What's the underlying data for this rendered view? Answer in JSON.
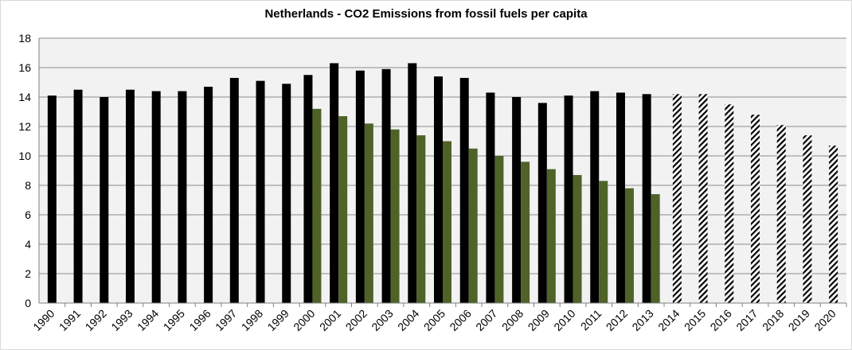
{
  "chart_data": {
    "type": "bar",
    "title": "Netherlands - CO2 Emissions from fossil fuels per capita",
    "xlabel": "",
    "ylabel": "",
    "ylim": [
      0,
      18
    ],
    "yticks": [
      0,
      2,
      4,
      6,
      8,
      10,
      12,
      14,
      16,
      18
    ],
    "grid": true,
    "legend": "none",
    "categories": [
      "1990",
      "1991",
      "1992",
      "1993",
      "1994",
      "1995",
      "1996",
      "1997",
      "1998",
      "1999",
      "2000",
      "2001",
      "2002",
      "2003",
      "2004",
      "2005",
      "2006",
      "2007",
      "2008",
      "2009",
      "2010",
      "2011",
      "2012",
      "2013",
      "2014",
      "2015",
      "2016",
      "2017",
      "2018",
      "2019",
      "2020"
    ],
    "series": [
      {
        "color": "#000000",
        "pattern": "solid",
        "values": [
          14.1,
          14.5,
          14.0,
          14.5,
          14.4,
          14.4,
          14.7,
          15.3,
          15.1,
          14.9,
          15.5,
          16.3,
          15.8,
          15.9,
          16.3,
          15.4,
          15.3,
          14.3,
          14.0,
          13.6,
          14.1,
          14.4,
          14.3,
          14.2,
          null,
          null,
          null,
          null,
          null,
          null,
          null
        ]
      },
      {
        "color": "#000000",
        "pattern": "hatched",
        "values": [
          null,
          null,
          null,
          null,
          null,
          null,
          null,
          null,
          null,
          null,
          null,
          null,
          null,
          null,
          null,
          null,
          null,
          null,
          null,
          null,
          null,
          null,
          null,
          null,
          14.2,
          14.2,
          13.5,
          12.8,
          12.1,
          11.4,
          10.7
        ]
      },
      {
        "color": "#4f6228",
        "pattern": "solid",
        "values": [
          null,
          null,
          null,
          null,
          null,
          null,
          null,
          null,
          null,
          null,
          13.2,
          12.7,
          12.2,
          11.8,
          11.4,
          11.0,
          10.5,
          10.0,
          9.6,
          9.1,
          8.7,
          8.3,
          7.8,
          7.4,
          null,
          null,
          null,
          null,
          null,
          null,
          null
        ]
      }
    ]
  }
}
